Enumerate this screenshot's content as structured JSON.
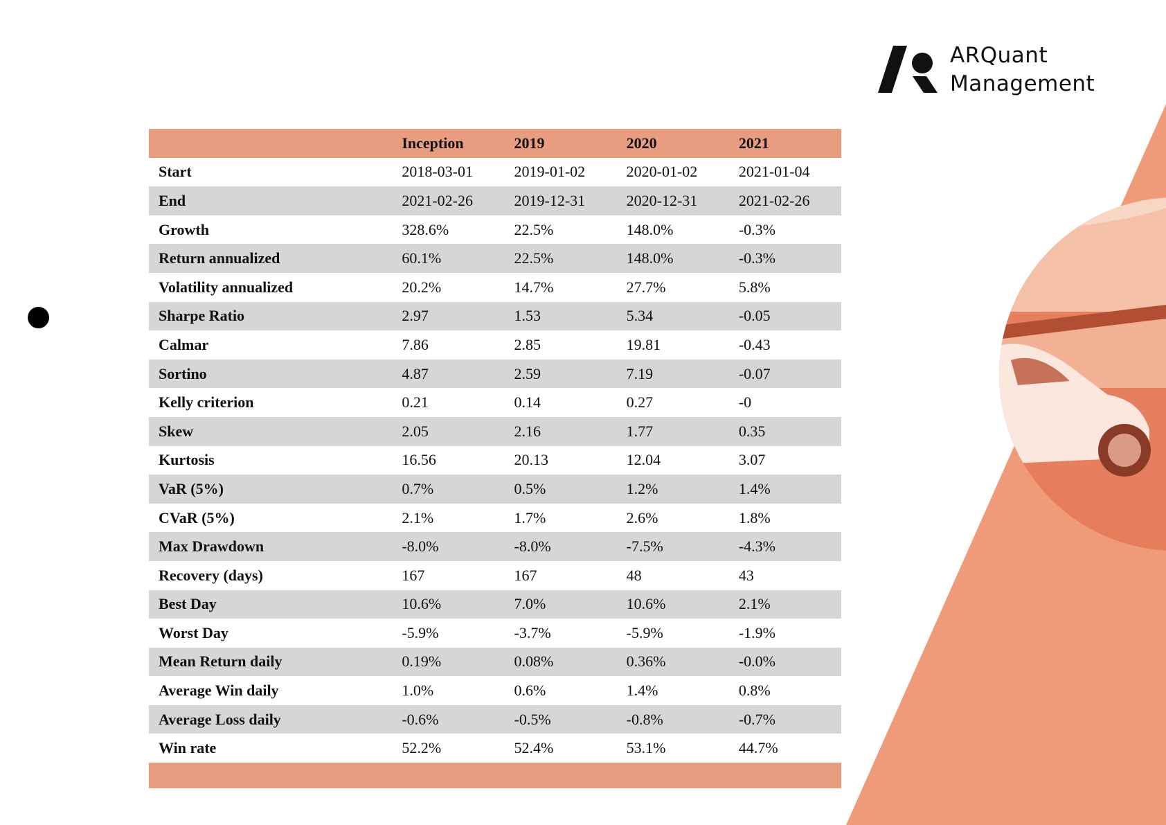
{
  "brand": {
    "logo_mark": "arquant-logo-icon",
    "name_line1": "ARQuant",
    "name_line2": "Management",
    "accent_color": "#ef9a78"
  },
  "table": {
    "headers": [
      "",
      "Inception",
      "2019",
      "2020",
      "2021"
    ],
    "rows": [
      {
        "label": "Start",
        "values": [
          "2018-03-01",
          "2019-01-02",
          "2020-01-02",
          "2021-01-04"
        ]
      },
      {
        "label": "End",
        "values": [
          "2021-02-26",
          "2019-12-31",
          "2020-12-31",
          "2021-02-26"
        ]
      },
      {
        "label": "Growth",
        "values": [
          "328.6%",
          "22.5%",
          "148.0%",
          "-0.3%"
        ]
      },
      {
        "label": "Return annualized",
        "values": [
          "60.1%",
          "22.5%",
          "148.0%",
          "-0.3%"
        ]
      },
      {
        "label": "Volatility annualized",
        "values": [
          "20.2%",
          "14.7%",
          "27.7%",
          "5.8%"
        ]
      },
      {
        "label": "Sharpe Ratio",
        "values": [
          "2.97",
          "1.53",
          "5.34",
          "-0.05"
        ]
      },
      {
        "label": "Calmar",
        "values": [
          "7.86",
          "2.85",
          "19.81",
          "-0.43"
        ]
      },
      {
        "label": "Sortino",
        "values": [
          "4.87",
          "2.59",
          "7.19",
          "-0.07"
        ]
      },
      {
        "label": "Kelly criterion",
        "values": [
          "0.21",
          "0.14",
          "0.27",
          "-0"
        ]
      },
      {
        "label": "Skew",
        "values": [
          "2.05",
          "2.16",
          "1.77",
          "0.35"
        ]
      },
      {
        "label": "Kurtosis",
        "values": [
          "16.56",
          "20.13",
          "12.04",
          "3.07"
        ]
      },
      {
        "label": "VaR (5%)",
        "values": [
          "0.7%",
          "0.5%",
          "1.2%",
          "1.4%"
        ]
      },
      {
        "label": "CVaR (5%)",
        "values": [
          "2.1%",
          "1.7%",
          "2.6%",
          "1.8%"
        ]
      },
      {
        "label": "Max Drawdown",
        "values": [
          "-8.0%",
          "-8.0%",
          "-7.5%",
          "-4.3%"
        ]
      },
      {
        "label": "Recovery (days)",
        "values": [
          "167",
          "167",
          "48",
          "43"
        ]
      },
      {
        "label": "Best Day",
        "values": [
          "10.6%",
          "7.0%",
          "10.6%",
          "2.1%"
        ]
      },
      {
        "label": "Worst Day",
        "values": [
          "-5.9%",
          "-3.7%",
          "-5.9%",
          "-1.9%"
        ]
      },
      {
        "label": "Mean Return daily",
        "values": [
          "0.19%",
          "0.08%",
          "0.36%",
          "-0.0%"
        ]
      },
      {
        "label": "Average Win daily",
        "values": [
          "1.0%",
          "0.6%",
          "1.4%",
          "0.8%"
        ]
      },
      {
        "label": "Average Loss daily",
        "values": [
          "-0.6%",
          "-0.5%",
          "-0.8%",
          "-0.7%"
        ]
      },
      {
        "label": "Win rate",
        "values": [
          "52.2%",
          "52.4%",
          "53.1%",
          "44.7%"
        ]
      }
    ]
  }
}
